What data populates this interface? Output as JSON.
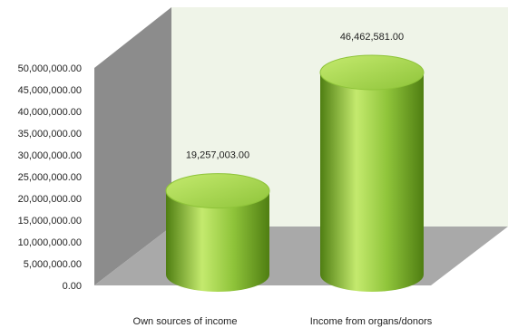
{
  "chart_data": {
    "type": "bar",
    "title": "",
    "xlabel": "",
    "ylabel": "",
    "categories": [
      "Own sources of income",
      "Income from organs/donors"
    ],
    "values": [
      19257003.0,
      46462581.0
    ],
    "data_labels": [
      "19,257,003.00",
      "46,462,581.00"
    ],
    "ylim": [
      0,
      50000000
    ],
    "y_ticks": [
      0,
      5000000,
      10000000,
      15000000,
      20000000,
      25000000,
      30000000,
      35000000,
      40000000,
      45000000,
      50000000
    ],
    "y_tick_labels": [
      "0.00",
      "5,000,000.00",
      "10,000,000.00",
      "15,000,000.00",
      "20,000,000.00",
      "25,000,000.00",
      "30,000,000.00",
      "35,000,000.00",
      "40,000,000.00",
      "45,000,000.00",
      "50,000,000.00"
    ],
    "bar_shape": "cylinder",
    "three_d": true,
    "legend": "none",
    "colors": {
      "bar_light": "#c4ea6e",
      "bar_mid": "#8fc43a",
      "bar_dark": "#4f7e12",
      "back_wall": "#eff4e8",
      "side_wall": "#8c8c8c",
      "floor": "#a9a9a9"
    }
  }
}
